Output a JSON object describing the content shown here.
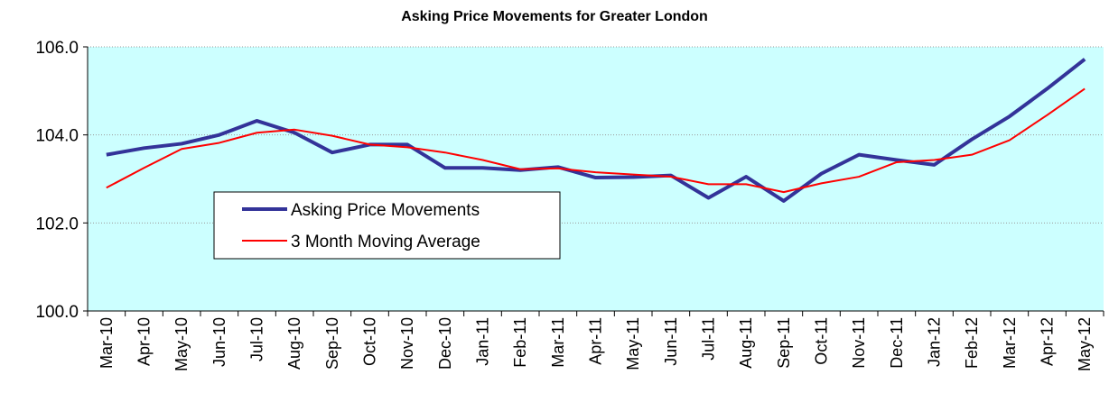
{
  "chart_data": {
    "type": "line",
    "title": "Asking Price Movements for Greater London",
    "categories": [
      "Mar-10",
      "Apr-10",
      "May-10",
      "Jun-10",
      "Jul-10",
      "Aug-10",
      "Sep-10",
      "Oct-10",
      "Nov-10",
      "Dec-10",
      "Jan-11",
      "Feb-11",
      "Mar-11",
      "Apr-11",
      "May-11",
      "Jun-11",
      "Jul-11",
      "Aug-11",
      "Sep-11",
      "Oct-11",
      "Nov-11",
      "Dec-11",
      "Jan-12",
      "Feb-12",
      "Mar-12",
      "Apr-12",
      "May-12"
    ],
    "series": [
      {
        "name": "Asking Price Movements",
        "color": "#333399",
        "width": 4,
        "values": [
          103.55,
          103.7,
          103.8,
          104.0,
          104.32,
          104.05,
          103.6,
          103.78,
          103.78,
          103.25,
          103.25,
          103.2,
          103.27,
          103.03,
          103.04,
          103.08,
          102.57,
          103.05,
          102.5,
          103.12,
          103.55,
          103.43,
          103.32,
          103.9,
          104.42,
          105.05,
          105.72
        ]
      },
      {
        "name": "3 Month Moving Average",
        "color": "#ff0000",
        "width": 2,
        "values": [
          102.8,
          103.25,
          103.68,
          103.82,
          104.05,
          104.12,
          103.98,
          103.78,
          103.72,
          103.6,
          103.43,
          103.22,
          103.24,
          103.15,
          103.1,
          103.05,
          102.88,
          102.88,
          102.7,
          102.9,
          103.05,
          103.38,
          103.43,
          103.55,
          103.88,
          104.45,
          105.05
        ]
      }
    ],
    "ylim": [
      100,
      106
    ],
    "yticks": [
      {
        "value": 100,
        "label": "100.0"
      },
      {
        "value": 102,
        "label": "102.0"
      },
      {
        "value": 104,
        "label": "104.0"
      },
      {
        "value": 106,
        "label": "106.0"
      }
    ],
    "grid": true,
    "plot_background": "#ccffff"
  }
}
